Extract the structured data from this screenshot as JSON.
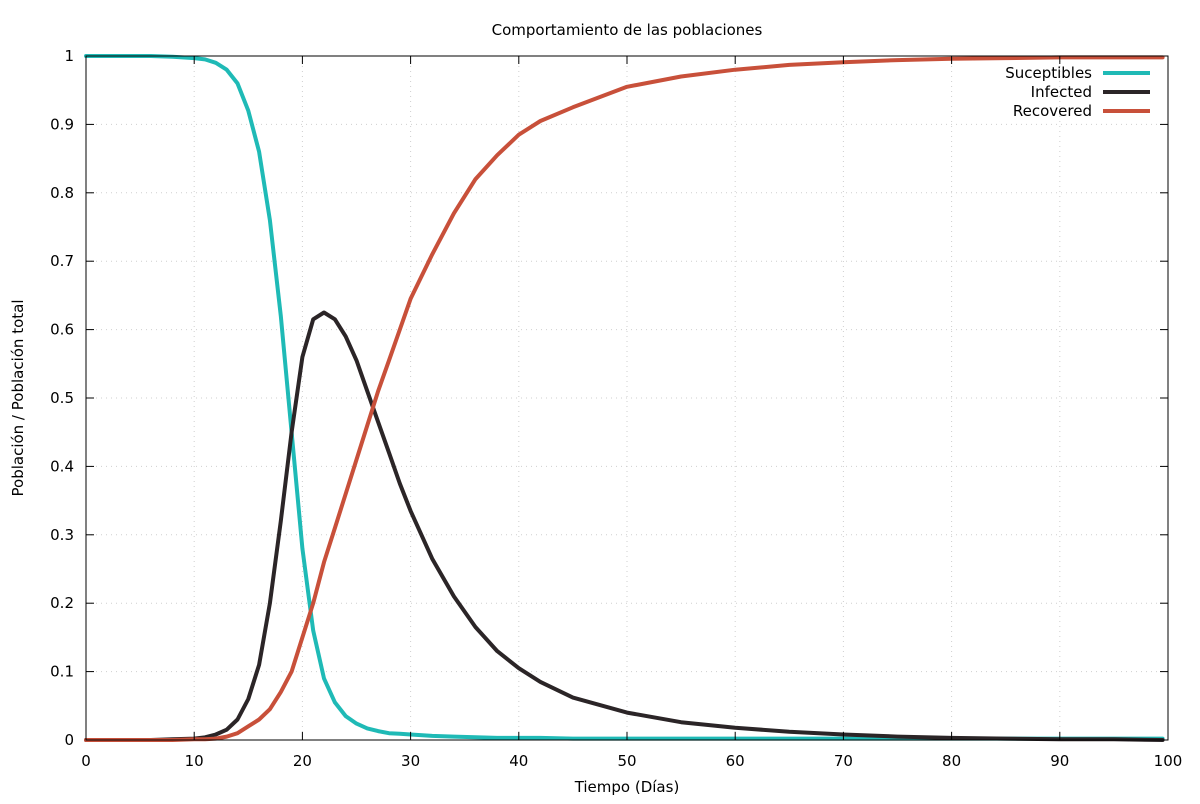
{
  "chart_data": {
    "type": "line",
    "title": "Comportamiento de las poblaciones",
    "xlabel": "Tiempo (Días)",
    "ylabel": "Población / Población total",
    "xlim": [
      0,
      100
    ],
    "ylim": [
      0,
      1
    ],
    "xticks": [
      0,
      10,
      20,
      30,
      40,
      50,
      60,
      70,
      80,
      90,
      100
    ],
    "yticks": [
      0,
      0.1,
      0.2,
      0.3,
      0.4,
      0.5,
      0.6,
      0.7,
      0.8,
      0.9,
      1
    ],
    "ytick_labels": [
      "0",
      "0.1",
      "0.2",
      "0.3",
      "0.4",
      "0.5",
      "0.6",
      "0.7",
      "0.8",
      "0.9",
      "1"
    ],
    "grid": true,
    "legend_position": "top-right",
    "x": [
      0,
      2,
      4,
      6,
      8,
      10,
      11,
      12,
      13,
      14,
      15,
      16,
      17,
      18,
      19,
      20,
      21,
      22,
      23,
      24,
      25,
      26,
      27,
      28,
      29,
      30,
      32,
      34,
      36,
      38,
      40,
      42,
      45,
      50,
      55,
      60,
      65,
      70,
      75,
      80,
      85,
      90,
      95,
      99.5
    ],
    "series": [
      {
        "name": "Suceptibles",
        "color": "#1fbab6",
        "values": [
          1,
          1,
          1,
          1,
          0.999,
          0.997,
          0.995,
          0.99,
          0.98,
          0.96,
          0.92,
          0.86,
          0.76,
          0.62,
          0.45,
          0.28,
          0.16,
          0.09,
          0.055,
          0.035,
          0.024,
          0.017,
          0.013,
          0.01,
          0.009,
          0.008,
          0.006,
          0.005,
          0.004,
          0.003,
          0.003,
          0.003,
          0.002,
          0.002,
          0.002,
          0.002,
          0.002,
          0.002,
          0.002,
          0.002,
          0.002,
          0.002,
          0.002,
          0.002
        ]
      },
      {
        "name": "Infected",
        "color": "#2b2527",
        "values": [
          0,
          0,
          0,
          0,
          0.001,
          0.002,
          0.004,
          0.008,
          0.015,
          0.03,
          0.06,
          0.11,
          0.2,
          0.32,
          0.45,
          0.56,
          0.615,
          0.625,
          0.615,
          0.59,
          0.555,
          0.51,
          0.465,
          0.42,
          0.375,
          0.335,
          0.265,
          0.21,
          0.165,
          0.13,
          0.105,
          0.085,
          0.062,
          0.04,
          0.026,
          0.018,
          0.012,
          0.008,
          0.005,
          0.003,
          0.002,
          0.001,
          0.001,
          0
        ]
      },
      {
        "name": "Recovered",
        "color": "#c8503a",
        "values": [
          0,
          0,
          0,
          0,
          0,
          0.001,
          0.001,
          0.002,
          0.005,
          0.01,
          0.02,
          0.03,
          0.045,
          0.07,
          0.1,
          0.15,
          0.2,
          0.26,
          0.31,
          0.36,
          0.41,
          0.46,
          0.51,
          0.555,
          0.6,
          0.645,
          0.71,
          0.77,
          0.82,
          0.855,
          0.885,
          0.905,
          0.925,
          0.955,
          0.97,
          0.98,
          0.987,
          0.991,
          0.994,
          0.996,
          0.997,
          0.998,
          0.998,
          0.998
        ]
      }
    ]
  }
}
